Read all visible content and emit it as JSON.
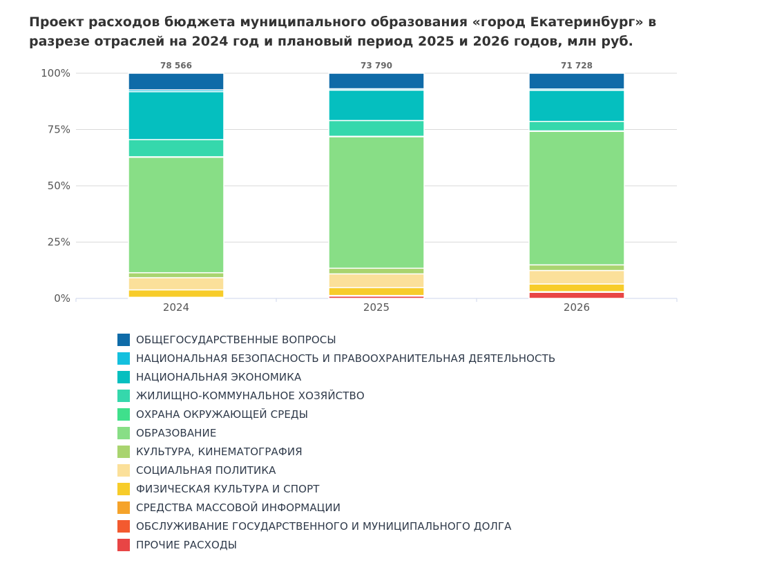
{
  "chart_data": {
    "type": "bar",
    "stacking": "percent",
    "title": "Проект расходов бюджета муниципального образования «город Екатеринбург» в разрезе отраслей на 2024 год и плановый период 2025 и 2026 годов, млн руб.",
    "categories": [
      "2024",
      "2025",
      "2026"
    ],
    "totals": [
      "78 566",
      "73 790",
      "71 728"
    ],
    "ylim": [
      0,
      100
    ],
    "yticks": [
      "0%",
      "25%",
      "50%",
      "75%",
      "100%"
    ],
    "grid": true,
    "legend_position": "bottom",
    "series": [
      {
        "name": "ПРОЧИЕ РАСХОДЫ",
        "color": "#e84545",
        "values": [
          0.2,
          1.0,
          2.7
        ]
      },
      {
        "name": "ОБСЛУЖИВАНИЕ ГОСУДАРСТВЕННОГО И МУНИЦИПАЛЬНОГО ДОЛГА",
        "color": "#f35a2f",
        "values": [
          0.1,
          0.1,
          0.1
        ]
      },
      {
        "name": "СРЕДСТВА МАССОВОЙ ИНФОРМАЦИИ",
        "color": "#f5a32a",
        "values": [
          0.2,
          0.2,
          0.2
        ]
      },
      {
        "name": "ФИЗИЧЕСКАЯ КУЛЬТУРА И СПОРТ",
        "color": "#f7cc2a",
        "values": [
          3.3,
          3.5,
          3.4
        ]
      },
      {
        "name": "СОЦИАЛЬНАЯ ПОЛИТИКА",
        "color": "#fbe09a",
        "values": [
          5.4,
          6.1,
          6.0
        ]
      },
      {
        "name": "КУЛЬТУРА, КИНЕМАТОГРАФИЯ",
        "color": "#a9d46f",
        "values": [
          2.2,
          2.5,
          2.5
        ]
      },
      {
        "name": "ОБРАЗОВАНИЕ",
        "color": "#88de86",
        "values": [
          51.3,
          58.4,
          59.3
        ]
      },
      {
        "name": "ОХРАНА ОКРУЖАЮЩЕЙ СРЕДЫ",
        "color": "#3fe08c",
        "values": [
          0.2,
          0.2,
          0.2
        ]
      },
      {
        "name": "ЖИЛИЩНО-КОММУНАЛЬНОЕ ХОЗЯЙСТВО",
        "color": "#35d8ac",
        "values": [
          7.6,
          7.0,
          4.2
        ]
      },
      {
        "name": "НАЦИОНАЛЬНАЯ ЭКОНОМИКА",
        "color": "#05bfbf",
        "values": [
          21.3,
          13.5,
          13.8
        ]
      },
      {
        "name": "НАЦИОНАЛЬНАЯ БЕЗОПАСНОСТЬ И ПРАВООХРАНИТЕЛЬНАЯ ДЕЯТЕЛЬНОСТЬ",
        "color": "#14c0de",
        "values": [
          0.8,
          0.6,
          0.6
        ]
      },
      {
        "name": "ОБЩЕГОСУДАРСТВЕННЫЕ ВОПРОСЫ",
        "color": "#0f6ba8",
        "values": [
          7.4,
          6.9,
          7.0
        ]
      }
    ],
    "legend_order": [
      "ОБЩЕГОСУДАРСТВЕННЫЕ ВОПРОСЫ",
      "НАЦИОНАЛЬНАЯ БЕЗОПАСНОСТЬ И ПРАВООХРАНИТЕЛЬНАЯ ДЕЯТЕЛЬНОСТЬ",
      "НАЦИОНАЛЬНАЯ ЭКОНОМИКА",
      "ЖИЛИЩНО-КОММУНАЛЬНОЕ ХОЗЯЙСТВО",
      "ОХРАНА ОКРУЖАЮЩЕЙ СРЕДЫ",
      "ОБРАЗОВАНИЕ",
      "КУЛЬТУРА, КИНЕМАТОГРАФИЯ",
      "СОЦИАЛЬНАЯ ПОЛИТИКА",
      "ФИЗИЧЕСКАЯ КУЛЬТУРА И СПОРТ",
      "СРЕДСТВА МАССОВОЙ ИНФОРМАЦИИ",
      "ОБСЛУЖИВАНИЕ ГОСУДАРСТВЕННОГО И МУНИЦИПАЛЬНОГО ДОЛГА",
      "ПРОЧИЕ РАСХОДЫ"
    ]
  }
}
